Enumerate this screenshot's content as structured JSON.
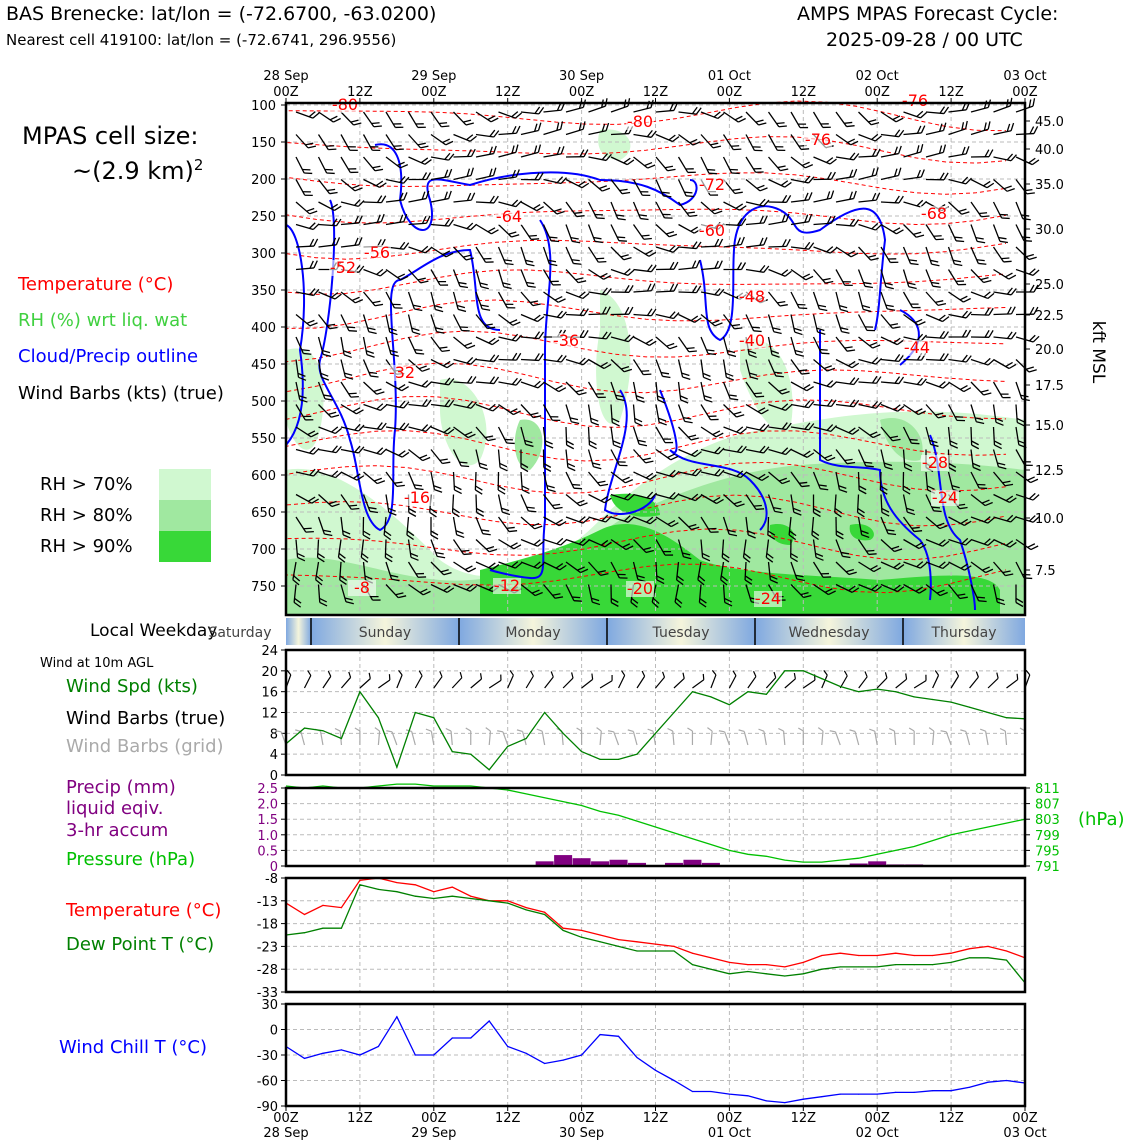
{
  "header": {
    "station": "BAS Brenecke: lat/lon = (-72.6700, -63.0200)",
    "nearest": "Nearest cell 419100: lat/lon = (-72.6741, 296.9556)",
    "cycle_line1": "AMPS MPAS Forecast Cycle:",
    "cycle_line2": "2025-09-28 / 00 UTC"
  },
  "cell_size": {
    "line1": "MPAS cell size:",
    "line2": "~(2.9 km)",
    "sup": "2"
  },
  "legend_top": {
    "temperature": "Temperature (°C)",
    "rh": "RH (%) wrt liq. wat",
    "cloud": "Cloud/Precip outline",
    "wind": "Wind Barbs (kts) (true)",
    "rh70": "RH > 70%",
    "rh80": "RH > 80%",
    "rh90": "RH > 90%"
  },
  "colors": {
    "temp": "#ff0000",
    "rh70": "#d0f8d0",
    "rh80": "#a0e8a0",
    "rh90": "#38d838",
    "cloud": "#0000ff",
    "pressure": "#00c000",
    "precip": "#800080",
    "dew": "#008000",
    "chill": "#0000ff"
  },
  "time_axis": {
    "top_dates": [
      "28 Sep",
      "",
      "29 Sep",
      "",
      "30 Sep",
      "",
      "01 Oct",
      "",
      "02 Oct",
      "",
      "03 Oct"
    ],
    "hours": [
      "00Z",
      "12Z",
      "00Z",
      "12Z",
      "00Z",
      "12Z",
      "00Z",
      "12Z",
      "00Z",
      "12Z",
      "00Z"
    ],
    "bottom_dates": [
      "28 Sep",
      "",
      "29 Sep",
      "",
      "30 Sep",
      "",
      "01 Oct",
      "",
      "02 Oct",
      "",
      "03 Oct"
    ]
  },
  "pressure_axis": {
    "ticks": [
      "100",
      "150",
      "200",
      "250",
      "300",
      "350",
      "400",
      "450",
      "500",
      "550",
      "600",
      "650",
      "700",
      "750"
    ],
    "kft_ticks": [
      "45.0",
      "40.0",
      "35.0",
      "30.0",
      "25.0",
      "22.5",
      "20.0",
      "17.5",
      "15.0",
      "12.5",
      "10.0",
      "7.5"
    ],
    "kft_label": "kft MSL"
  },
  "contour_labels": [
    "-80",
    "-80",
    "-76",
    "-76",
    "-72",
    "-68",
    "-64",
    "-60",
    "-56",
    "-52",
    "-48",
    "-44",
    "-40",
    "-36",
    "-32",
    "-28",
    "-24",
    "-24",
    "-20",
    "-16",
    "-12",
    "-8"
  ],
  "weekday": {
    "label": "Local Weekday",
    "days": [
      "Saturday",
      "Sunday",
      "Monday",
      "Tuesday",
      "Wednesday",
      "Thursday"
    ]
  },
  "wind_panel": {
    "title": "Wind at 10m AGL",
    "spd": "Wind Spd (kts)",
    "barbs_true": "Wind Barbs (true)",
    "barbs_grid": "Wind Barbs (grid)",
    "yticks": [
      "0",
      "4",
      "8",
      "12",
      "16",
      "20",
      "24"
    ]
  },
  "precip_panel": {
    "precip_l1": "Precip (mm)",
    "precip_l2": "liquid eqiv.",
    "precip_l3": "3-hr accum",
    "pressure": "Pressure (hPa)",
    "left_ticks": [
      "0",
      "0.5",
      "1.0",
      "1.5",
      "2.0",
      "2.5"
    ],
    "right_ticks": [
      "791",
      "795",
      "799",
      "803",
      "807",
      "811"
    ],
    "unit": "(hPa)"
  },
  "temp_panel": {
    "temp": "Temperature (°C)",
    "dew": "Dew Point T (°C)",
    "yticks": [
      "-33",
      "-28",
      "-23",
      "-18",
      "-13",
      "-8"
    ]
  },
  "chill_panel": {
    "label": "Wind Chill T (°C)",
    "yticks": [
      "-90",
      "-60",
      "-30",
      "0",
      "30"
    ]
  },
  "chart_data": [
    {
      "type": "line",
      "title": "Wind at 10m AGL",
      "x_hours": [
        0,
        3,
        6,
        9,
        12,
        15,
        18,
        21,
        24,
        27,
        30,
        33,
        36,
        39,
        42,
        45,
        48,
        51,
        54,
        57,
        60,
        63,
        66,
        69,
        72,
        75,
        78,
        81,
        84,
        87,
        90,
        93,
        96,
        99,
        102,
        105,
        108,
        111,
        114,
        117,
        120
      ],
      "series": [
        {
          "name": "Wind Spd (kts)",
          "values": [
            6,
            9,
            8.5,
            7,
            16,
            11,
            1.5,
            12,
            11,
            4.5,
            4,
            1,
            5.5,
            7,
            12,
            8,
            4.5,
            3,
            3,
            4,
            8,
            12,
            16,
            15,
            13.5,
            16,
            15.5,
            20,
            20,
            18.5,
            17,
            16,
            16.5,
            16,
            15,
            14.5,
            14,
            13,
            12,
            11,
            10.8
          ]
        }
      ],
      "ylim": [
        0,
        24
      ]
    },
    {
      "type": "bar",
      "title": "Precip / Pressure",
      "precip_bars": [
        {
          "h": 42,
          "v": 0.15
        },
        {
          "h": 45,
          "v": 0.35
        },
        {
          "h": 48,
          "v": 0.25
        },
        {
          "h": 51,
          "v": 0.15
        },
        {
          "h": 54,
          "v": 0.2
        },
        {
          "h": 57,
          "v": 0.1
        },
        {
          "h": 63,
          "v": 0.1
        },
        {
          "h": 66,
          "v": 0.2
        },
        {
          "h": 69,
          "v": 0.1
        },
        {
          "h": 93,
          "v": 0.08
        },
        {
          "h": 96,
          "v": 0.15
        },
        {
          "h": 99,
          "v": 0.05
        },
        {
          "h": 102,
          "v": 0.05
        }
      ],
      "pressure_x": [
        0,
        3,
        6,
        9,
        12,
        15,
        18,
        21,
        24,
        27,
        30,
        33,
        36,
        39,
        42,
        45,
        48,
        51,
        54,
        57,
        60,
        63,
        66,
        69,
        72,
        75,
        78,
        81,
        84,
        87,
        90,
        93,
        96,
        99,
        102,
        105,
        108,
        111,
        114,
        117,
        120
      ],
      "pressure_values": [
        811.5,
        811,
        811.5,
        811,
        811,
        811.5,
        812,
        812,
        811.5,
        811.5,
        811.5,
        811,
        810.5,
        809.5,
        808.5,
        807.5,
        806.5,
        805,
        804,
        802.5,
        801,
        799.5,
        798,
        796.5,
        795,
        794,
        793.5,
        792.5,
        792,
        792,
        792.5,
        793,
        794,
        795,
        796,
        797.5,
        799,
        800,
        801,
        802,
        803
      ],
      "ylim_precip": [
        0,
        2.5
      ],
      "ylim_pressure": [
        791,
        811
      ]
    },
    {
      "type": "line",
      "title": "Temperature / Dew Point",
      "x_hours": [
        0,
        3,
        6,
        9,
        12,
        15,
        18,
        21,
        24,
        27,
        30,
        33,
        36,
        39,
        42,
        45,
        48,
        51,
        54,
        57,
        60,
        63,
        66,
        69,
        72,
        75,
        78,
        81,
        84,
        87,
        90,
        93,
        96,
        99,
        102,
        105,
        108,
        111,
        114,
        117,
        120
      ],
      "series": [
        {
          "name": "Temperature (°C)",
          "values": [
            -13.5,
            -16,
            -14,
            -14.5,
            -8.5,
            -8,
            -9,
            -9.5,
            -11,
            -10,
            -12,
            -13,
            -13,
            -14.5,
            -15.5,
            -19,
            -19.5,
            -20.5,
            -21.5,
            -22,
            -22.5,
            -23,
            -24.5,
            -25.5,
            -26.5,
            -27,
            -27,
            -27.5,
            -26.5,
            -25,
            -24.5,
            -25,
            -25,
            -24.5,
            -25,
            -25,
            -24.5,
            -23.5,
            -23,
            -24,
            -25.5
          ]
        },
        {
          "name": "Dew Point T (°C)",
          "values": [
            -20.5,
            -20,
            -19,
            -19,
            -9.5,
            -10.5,
            -11,
            -12,
            -12.5,
            -12,
            -12.5,
            -13,
            -13.5,
            -15,
            -16,
            -19.5,
            -21,
            -22,
            -23,
            -24,
            -24,
            -24,
            -27,
            -28,
            -29,
            -28.5,
            -29,
            -29.5,
            -29,
            -28,
            -27.5,
            -27.5,
            -27.5,
            -27,
            -27,
            -27,
            -26.5,
            -25.5,
            -25.5,
            -26,
            -31
          ]
        }
      ],
      "ylim": [
        -33,
        -8
      ]
    },
    {
      "type": "line",
      "title": "Wind Chill T (°C)",
      "x_hours": [
        0,
        3,
        6,
        9,
        12,
        15,
        18,
        21,
        24,
        27,
        30,
        33,
        36,
        39,
        42,
        45,
        48,
        51,
        54,
        57,
        60,
        63,
        66,
        69,
        72,
        75,
        78,
        81,
        84,
        87,
        90,
        93,
        96,
        99,
        102,
        105,
        108,
        111,
        114,
        117,
        120
      ],
      "series": [
        {
          "name": "Wind Chill T (°C)",
          "values": [
            -20,
            -34,
            -28,
            -24,
            -30,
            -20,
            15,
            -30,
            -30,
            -10,
            -10,
            10,
            -20,
            -28,
            -40,
            -36,
            -30,
            -6,
            -8,
            -33,
            -48,
            -60,
            -73,
            -73,
            -76,
            -78,
            -84,
            -86,
            -82,
            -79,
            -76,
            -76,
            -76,
            -74,
            -74,
            -72,
            -72,
            -68,
            -62,
            -60,
            -63
          ]
        }
      ],
      "ylim": [
        -90,
        30
      ]
    }
  ]
}
